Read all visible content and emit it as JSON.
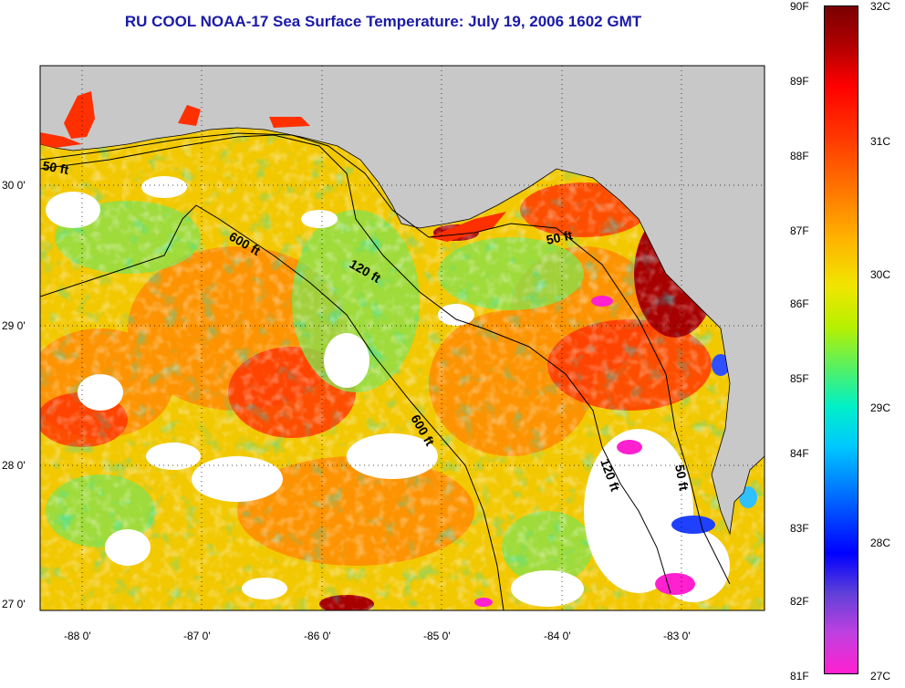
{
  "title": "RU COOL  NOAA-17  Sea Surface Temperature:  July 19, 2006 1602 GMT",
  "axes": {
    "x_ticks": [
      "-88 0'",
      "-87 0'",
      "-86 0'",
      "-85 0'",
      "-84 0'",
      "-83 0'"
    ],
    "y_ticks": [
      "30 0'",
      "29 0'",
      "28 0'",
      "27 0'"
    ]
  },
  "contours": {
    "labels": [
      "50 ft",
      "600 ft",
      "120 ft",
      "50 ft",
      "600 ft",
      "120 ft",
      "50 ft"
    ]
  },
  "colorbar": {
    "fahrenheit": [
      "90F",
      "89F",
      "88F",
      "87F",
      "86F",
      "85F",
      "84F",
      "83F",
      "82F",
      "81F"
    ],
    "celsius": [
      "32C",
      "31C",
      "30C",
      "29C",
      "28C",
      "27C"
    ]
  },
  "colors": {
    "land": "#c8c8c8",
    "cloud": "#ffffff",
    "title": "#1a1aa8"
  }
}
